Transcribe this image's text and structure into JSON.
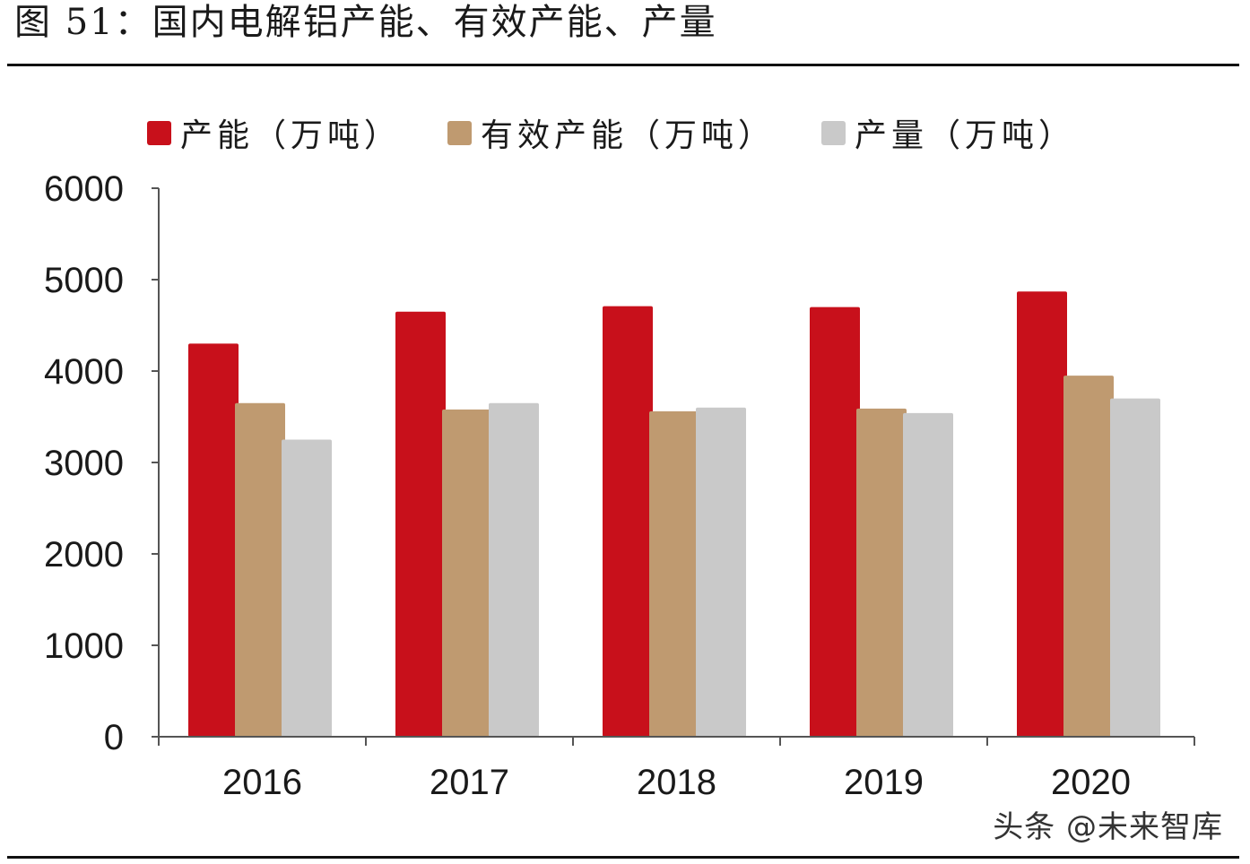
{
  "figure": {
    "title": "图 51：国内电解铝产能、有效产能、产量",
    "watermark": "头条 @未来智库"
  },
  "colors": {
    "capacity": "#c8101b",
    "effective": "#bf9a70",
    "output": "#c9c9c9",
    "axis": "#555555"
  },
  "chart_data": {
    "type": "bar",
    "title": "图 51：国内电解铝产能、有效产能、产量",
    "xlabel": "",
    "ylabel": "",
    "ylim": [
      0,
      6000
    ],
    "yticks": [
      "0",
      "1000",
      "2000",
      "3000",
      "4000",
      "5000",
      "6000"
    ],
    "categories": [
      "2016",
      "2017",
      "2018",
      "2019",
      "2020"
    ],
    "legend_position": "top",
    "grid": false,
    "series": [
      {
        "name": "产能（万吨）",
        "color": "#c8101b",
        "values": [
          4300,
          4650,
          4710,
          4700,
          4870
        ]
      },
      {
        "name": "有效产能（万吨）",
        "color": "#bf9a70",
        "values": [
          3650,
          3580,
          3560,
          3590,
          3950
        ]
      },
      {
        "name": "产量（万吨）",
        "color": "#c9c9c9",
        "values": [
          3250,
          3650,
          3600,
          3540,
          3700
        ]
      }
    ]
  }
}
